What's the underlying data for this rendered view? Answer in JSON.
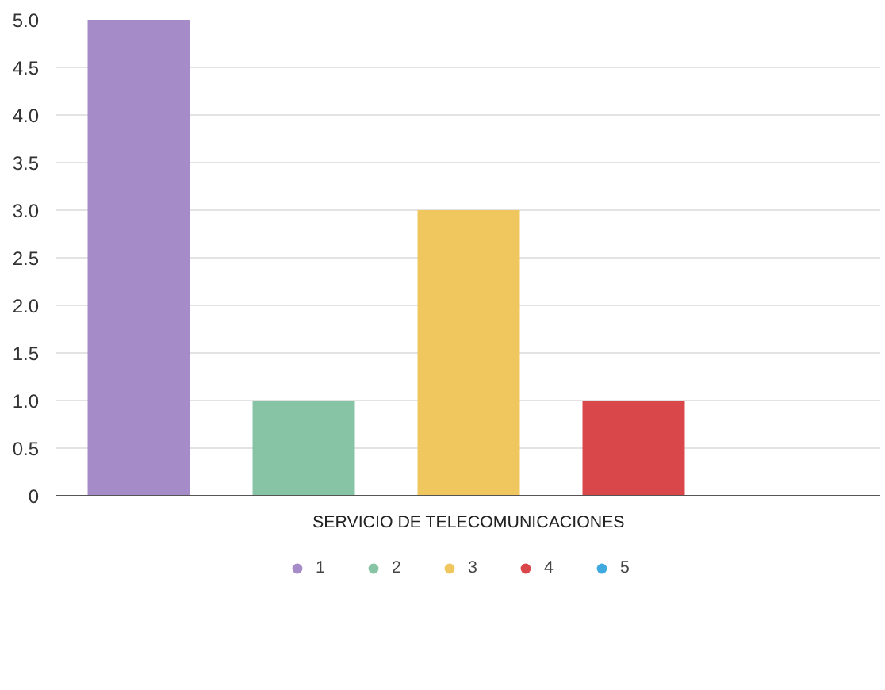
{
  "chart_data": {
    "type": "bar",
    "categories": [
      "SERVICIO DE TELECOMUNICACIONES"
    ],
    "series": [
      {
        "name": "1",
        "color": "#a58bc8",
        "values": [
          5.0
        ]
      },
      {
        "name": "2",
        "color": "#86c4a5",
        "values": [
          1.0
        ]
      },
      {
        "name": "3",
        "color": "#f0c75e",
        "values": [
          3.0
        ]
      },
      {
        "name": "4",
        "color": "#d9474b",
        "values": [
          1.0
        ]
      },
      {
        "name": "5",
        "color": "#3fa9e0",
        "values": [
          0
        ]
      }
    ],
    "ylim": [
      0,
      5.0
    ],
    "yticks": [
      {
        "value": 0,
        "label": "0"
      },
      0.5,
      {
        "value": 1,
        "label": "1.0"
      },
      1.5,
      {
        "value": 2,
        "label": "2.0"
      },
      2.5,
      {
        "value": 3,
        "label": "3.0"
      },
      3.5,
      {
        "value": 4,
        "label": "4.0"
      },
      4.5,
      {
        "value": 5,
        "label": "5.0"
      }
    ],
    "grid": "y",
    "legend": "bottom",
    "marker": "circle"
  }
}
